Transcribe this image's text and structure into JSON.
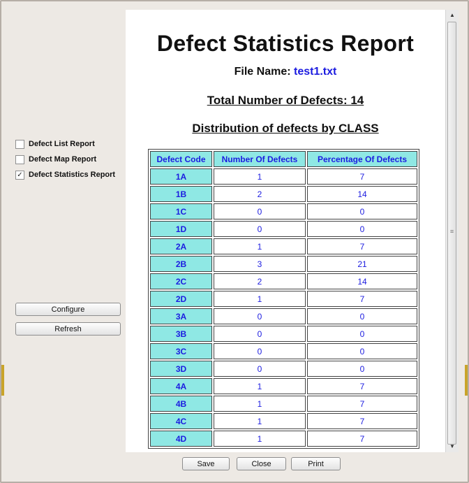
{
  "sidebar": {
    "checkboxes": [
      {
        "label": "Defect List Report",
        "checked": false
      },
      {
        "label": "Defect Map Report",
        "checked": false
      },
      {
        "label": "Defect Statistics Report",
        "checked": true
      }
    ],
    "configure_label": "Configure",
    "refresh_label": "Refresh",
    "check_mark": "✓"
  },
  "report": {
    "title": "Defect Statistics Report",
    "file_name_label": "File Name:",
    "file_name": "test1.txt",
    "total_line": "Total Number of Defects: 14",
    "distribution_line": "Distribution of defects by CLASS",
    "headers": [
      "Defect Code",
      "Number Of Defects",
      "Percentage Of Defects"
    ],
    "rows": [
      [
        "1A",
        "1",
        "7"
      ],
      [
        "1B",
        "2",
        "14"
      ],
      [
        "1C",
        "0",
        "0"
      ],
      [
        "1D",
        "0",
        "0"
      ],
      [
        "2A",
        "1",
        "7"
      ],
      [
        "2B",
        "3",
        "21"
      ],
      [
        "2C",
        "2",
        "14"
      ],
      [
        "2D",
        "1",
        "7"
      ],
      [
        "3A",
        "0",
        "0"
      ],
      [
        "3B",
        "0",
        "0"
      ],
      [
        "3C",
        "0",
        "0"
      ],
      [
        "3D",
        "0",
        "0"
      ],
      [
        "4A",
        "1",
        "7"
      ],
      [
        "4B",
        "1",
        "7"
      ],
      [
        "4C",
        "1",
        "7"
      ],
      [
        "4D",
        "1",
        "7"
      ]
    ]
  },
  "footer": {
    "save_label": "Save",
    "close_label": "Close",
    "print_label": "Print"
  },
  "scrollbar": {
    "up_arrow": "▲",
    "down_arrow": "▼",
    "grip": "≡"
  },
  "colors": {
    "header_bg": "#8fe8e4",
    "data_text": "#1c1ce0",
    "window_bg": "#ede9e4"
  }
}
